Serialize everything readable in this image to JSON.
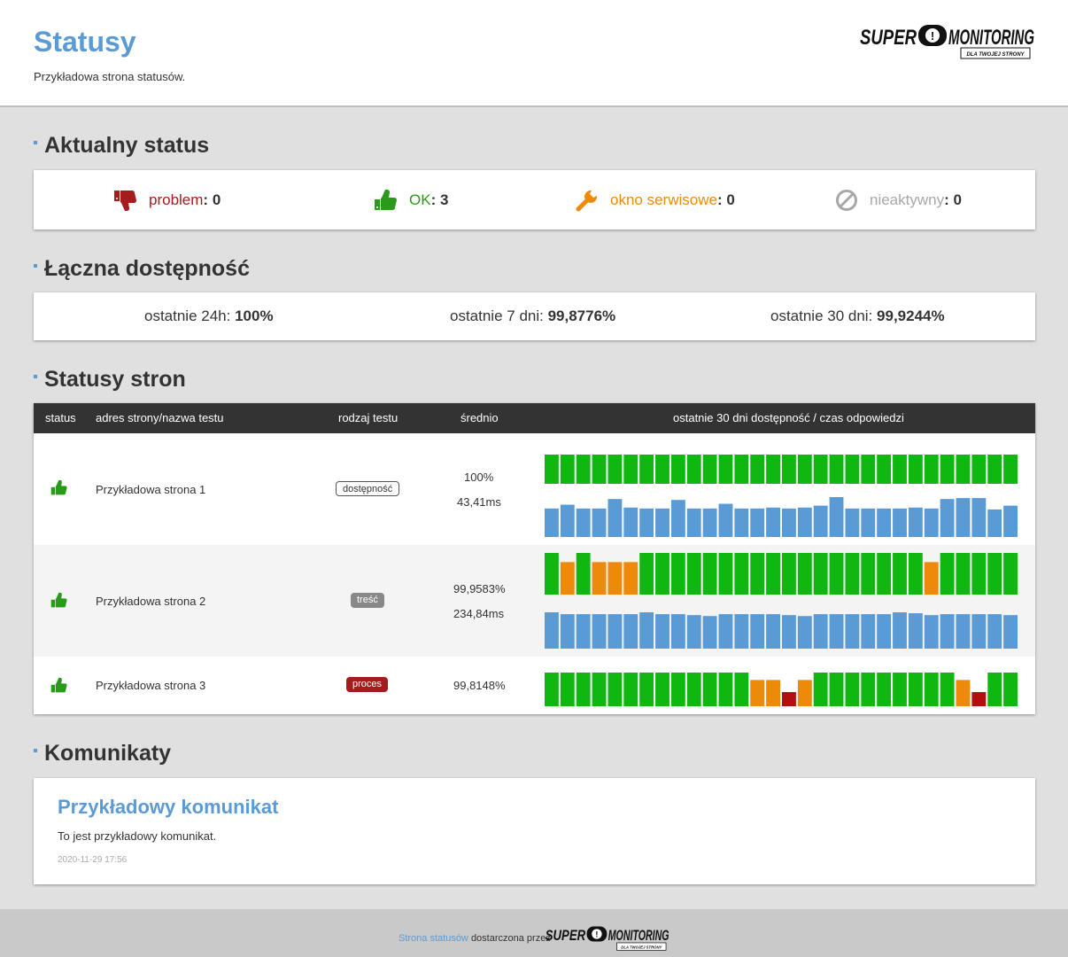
{
  "header": {
    "title": "Statusy",
    "subtitle": "Przykładowa strona statusów.",
    "logo": {
      "word1": "SUPER",
      "mark": "!",
      "word2": "MONITORING",
      "tagline": "DLA TWOJEJ STRONY"
    }
  },
  "current_status": {
    "title": "Aktualny status",
    "items": [
      {
        "label": "problem",
        "value": "0",
        "icon": "thumbs-down-icon",
        "color": "#a51c1c"
      },
      {
        "label": "OK",
        "value": "3",
        "icon": "thumbs-up-icon",
        "color": "#2a9a1a"
      },
      {
        "label": "okno serwisowe",
        "value": "0",
        "icon": "wrench-icon",
        "color": "#ed8a0a"
      },
      {
        "label": "nieaktywny",
        "value": "0",
        "icon": "prohibited-icon",
        "color": "#a8a8a8"
      }
    ]
  },
  "availability": {
    "title": "Łączna dostępność",
    "items": [
      {
        "label": "ostatnie 24h:",
        "value": "100%"
      },
      {
        "label": "ostatnie 7 dni:",
        "value": "99,8776%"
      },
      {
        "label": "ostatnie 30 dni:",
        "value": "99,9244%"
      }
    ]
  },
  "sites": {
    "title": "Statusy stron",
    "columns": {
      "status": "status",
      "name": "adres strony/nazwa testu",
      "type": "rodzaj testu",
      "avg": "średnio",
      "history": "ostatnie 30 dni dostępność / czas odpowiedzi"
    },
    "colors": {
      "ok": "#11b711",
      "warn": "#ed8a0a",
      "down": "#b30f0f",
      "response": "#5b9bd5"
    },
    "rows": [
      {
        "status_icon": "thumbs-up-icon",
        "name": "Przykładowa strona 1",
        "type": "dostępność",
        "availability": "100%",
        "response": "43,41ms",
        "daily_availability": [
          "ok",
          "ok",
          "ok",
          "ok",
          "ok",
          "ok",
          "ok",
          "ok",
          "ok",
          "ok",
          "ok",
          "ok",
          "ok",
          "ok",
          "ok",
          "ok",
          "ok",
          "ok",
          "ok",
          "ok",
          "ok",
          "ok",
          "ok",
          "ok",
          "ok",
          "ok",
          "ok",
          "ok",
          "ok",
          "ok"
        ],
        "daily_response": [
          30,
          34,
          30,
          30,
          40,
          31,
          30,
          30,
          39,
          30,
          30,
          35,
          30,
          30,
          31,
          30,
          31,
          33,
          42,
          30,
          30,
          30,
          30,
          31,
          30,
          40,
          41,
          41,
          29,
          33
        ]
      },
      {
        "status_icon": "thumbs-up-icon",
        "name": "Przykładowa strona 2",
        "type": "treść",
        "availability": "99,9583%",
        "response": "234,84ms",
        "daily_availability": [
          "ok",
          "warn",
          "ok",
          "warn",
          "warn",
          "warn",
          "ok",
          "ok",
          "ok",
          "ok",
          "ok",
          "ok",
          "ok",
          "ok",
          "ok",
          "ok",
          "ok",
          "ok",
          "ok",
          "ok",
          "ok",
          "ok",
          "ok",
          "ok",
          "warn",
          "ok",
          "ok",
          "ok",
          "ok",
          "ok"
        ],
        "daily_response": [
          39,
          37,
          37,
          37,
          37,
          37,
          39,
          37,
          37,
          36,
          35,
          37,
          37,
          37,
          37,
          36,
          35,
          37,
          37,
          37,
          37,
          37,
          39,
          38,
          36,
          37,
          37,
          37,
          37,
          36
        ]
      },
      {
        "status_icon": "thumbs-up-icon",
        "name": "Przykładowa strona 3",
        "type": "proces",
        "availability": "99,8148%",
        "response": "",
        "daily_availability": [
          "ok",
          "ok",
          "ok",
          "ok",
          "ok",
          "ok",
          "ok",
          "ok",
          "ok",
          "ok",
          "ok",
          "ok",
          "ok",
          "warn",
          "warn",
          "down",
          "warn",
          "ok",
          "ok",
          "ok",
          "ok",
          "ok",
          "ok",
          "ok",
          "ok",
          "ok",
          "warn",
          "down",
          "ok",
          "ok"
        ],
        "daily_response": []
      }
    ]
  },
  "messages": {
    "title": "Komunikaty",
    "items": [
      {
        "title": "Przykładowy komunikat",
        "body": "To jest przykładowy komunikat.",
        "date": "2020-11-29 17:56"
      }
    ]
  },
  "footer": {
    "link_text": "Strona statusów",
    "text": "dostarczona przez"
  }
}
